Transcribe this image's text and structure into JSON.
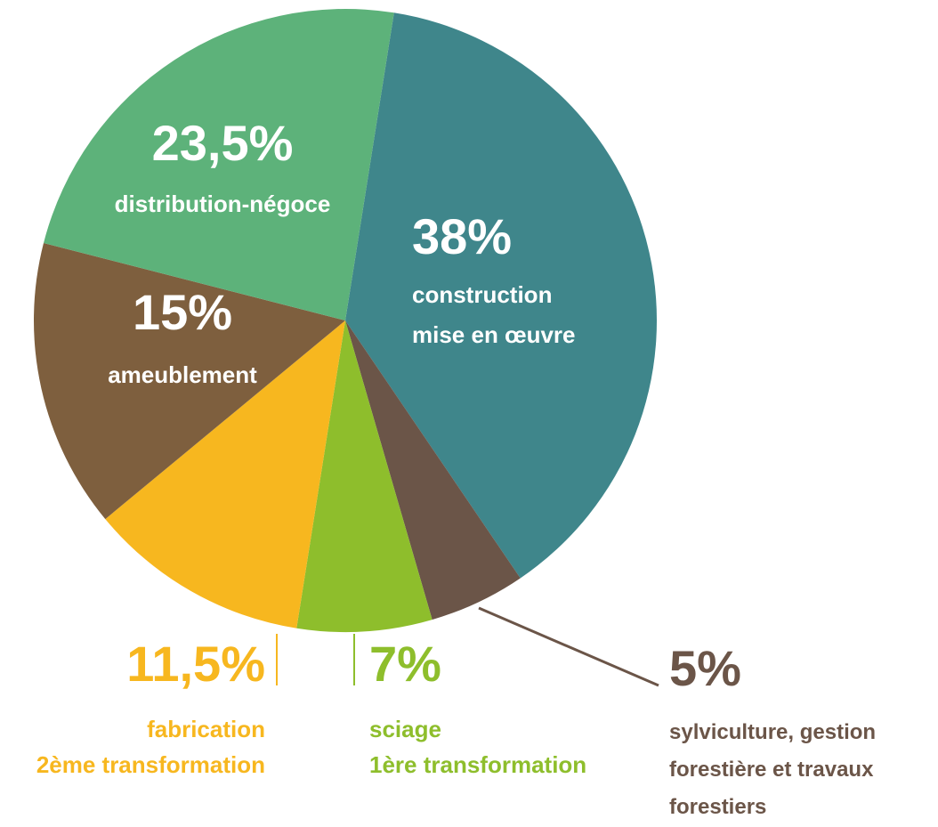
{
  "chart_data": {
    "type": "pie",
    "categories": [
      [
        "construction",
        "mise en œuvre"
      ],
      [
        "sylviculture, gestion",
        "forestière et travaux",
        "forestiers"
      ],
      [
        "sciage",
        "1ère transformation"
      ],
      [
        "fabrication",
        "2ème transformation"
      ],
      [
        "ameublement"
      ],
      [
        "distribution-négoce"
      ]
    ],
    "values": [
      38,
      5,
      7,
      11.5,
      15,
      23.5
    ],
    "value_labels": [
      "38%",
      "5%",
      "7%",
      "11,5%",
      "15%",
      "23,5%"
    ],
    "colors": [
      "#3f868b",
      "#6b5548",
      "#8ebe2c",
      "#f7b71f",
      "#7e5f3e",
      "#5db27a"
    ]
  }
}
